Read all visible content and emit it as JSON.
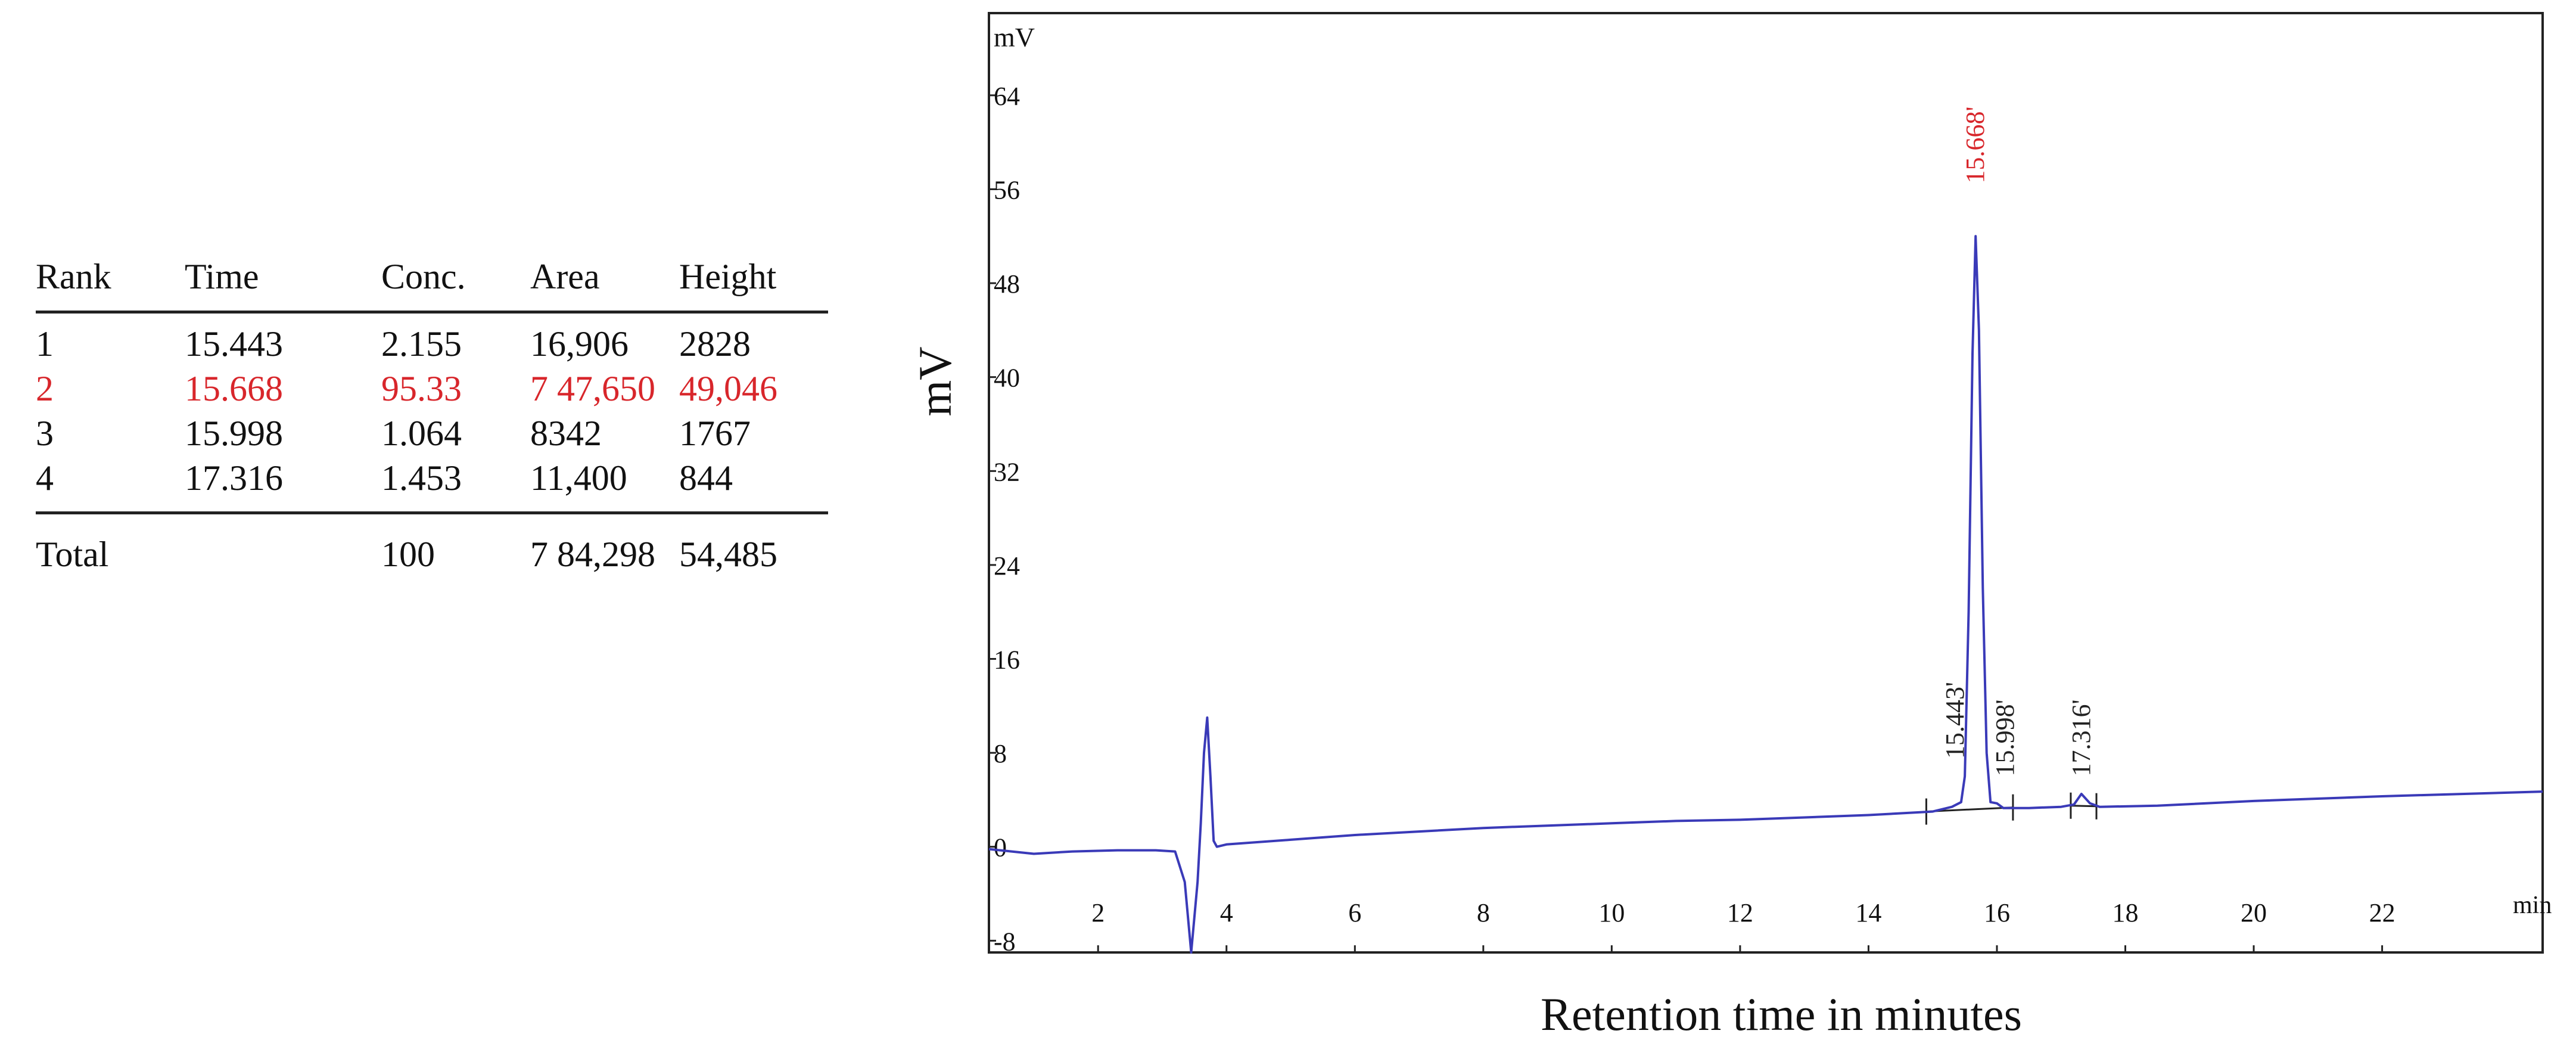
{
  "table": {
    "headers": [
      "Rank",
      "Time",
      "Conc.",
      "Area",
      "Height"
    ],
    "rows": [
      {
        "rank": "1",
        "time": "15.443",
        "conc": "2.155",
        "area": "16,906",
        "height": "2828",
        "highlight": false
      },
      {
        "rank": "2",
        "time": "15.668",
        "conc": "95.33",
        "area": "7 47,650",
        "height": "49,046",
        "highlight": true
      },
      {
        "rank": "3",
        "time": "15.998",
        "conc": "1.064",
        "area": "8342",
        "height": "1767",
        "highlight": false
      },
      {
        "rank": "4",
        "time": "17.316",
        "conc": "1.453",
        "area": "11,400",
        "height": "844",
        "highlight": false
      }
    ],
    "total": {
      "label": "Total",
      "conc": "100",
      "area": "7 84,298",
      "height": "54,485"
    },
    "highlight_color": "#d8262b"
  },
  "chart_data": {
    "type": "line",
    "title": "",
    "xlabel": "Retention time in minutes",
    "ylabel": "mV",
    "x_unit": "min",
    "y_unit": "mV",
    "xlim": [
      0.3,
      24.5
    ],
    "ylim": [
      -9,
      71
    ],
    "x_ticks": [
      2,
      4,
      6,
      8,
      10,
      12,
      14,
      16,
      18,
      20,
      22
    ],
    "y_ticks": [
      -8,
      0,
      8,
      16,
      24,
      32,
      40,
      48,
      56,
      64
    ],
    "line_color": "#3a3ab8",
    "series": [
      {
        "points": [
          [
            0.3,
            -0.2
          ],
          [
            1.0,
            -0.6
          ],
          [
            1.6,
            -0.4
          ],
          [
            2.3,
            -0.3
          ],
          [
            2.9,
            -0.3
          ],
          [
            3.2,
            -0.4
          ],
          [
            3.35,
            -3.0
          ],
          [
            3.45,
            -9.0
          ],
          [
            3.55,
            -3.0
          ],
          [
            3.6,
            2.0
          ],
          [
            3.65,
            8.0
          ],
          [
            3.7,
            11.0
          ],
          [
            3.75,
            6.0
          ],
          [
            3.8,
            0.5
          ],
          [
            3.85,
            0.0
          ],
          [
            4.0,
            0.2
          ],
          [
            5.0,
            0.6
          ],
          [
            6.0,
            1.0
          ],
          [
            7.0,
            1.3
          ],
          [
            8.0,
            1.6
          ],
          [
            9.0,
            1.8
          ],
          [
            10.0,
            2.0
          ],
          [
            11.0,
            2.2
          ],
          [
            12.0,
            2.3
          ],
          [
            13.0,
            2.5
          ],
          [
            14.0,
            2.7
          ],
          [
            15.0,
            3.0
          ],
          [
            15.3,
            3.4
          ],
          [
            15.443,
            3.8
          ],
          [
            15.5,
            6.0
          ],
          [
            15.56,
            20.0
          ],
          [
            15.62,
            42.0
          ],
          [
            15.668,
            52.0
          ],
          [
            15.72,
            44.0
          ],
          [
            15.78,
            22.0
          ],
          [
            15.84,
            8.0
          ],
          [
            15.9,
            3.8
          ],
          [
            15.998,
            3.7
          ],
          [
            16.1,
            3.3
          ],
          [
            16.5,
            3.3
          ],
          [
            17.0,
            3.4
          ],
          [
            17.2,
            3.6
          ],
          [
            17.316,
            4.5
          ],
          [
            17.45,
            3.7
          ],
          [
            17.6,
            3.4
          ],
          [
            18.5,
            3.5
          ],
          [
            20.0,
            3.9
          ],
          [
            22.0,
            4.3
          ],
          [
            24.5,
            4.7
          ]
        ]
      }
    ],
    "peaks": [
      {
        "label": "15.668'",
        "x": 15.668,
        "color": "#d8262b"
      },
      {
        "label": "15.443'",
        "x": 15.443,
        "color": "#222222"
      },
      {
        "label": "15.998'",
        "x": 15.998,
        "color": "#222222"
      },
      {
        "label": "17.316'",
        "x": 17.316,
        "color": "#222222"
      }
    ],
    "grid": false,
    "legend": "none"
  }
}
